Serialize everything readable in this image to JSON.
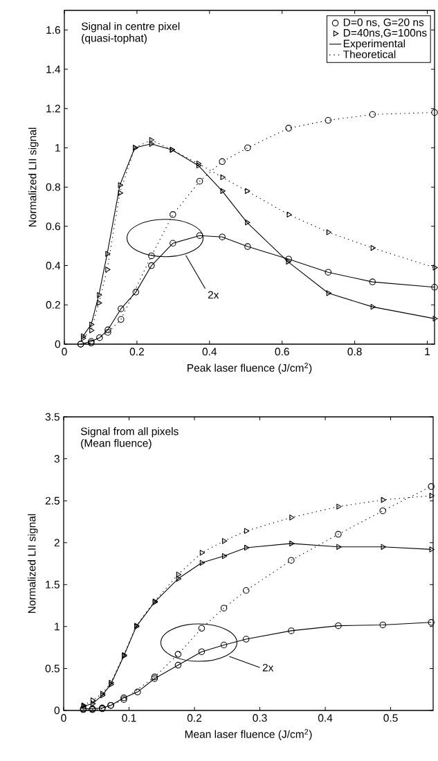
{
  "chart_data": [
    {
      "type": "line",
      "xlabel": "Peak laser fluence (J/cm$^{2}$)",
      "ylabel": "Normalized LII signal",
      "xlim": [
        0,
        1.02
      ],
      "ylim": [
        0,
        1.7
      ],
      "xticks": [
        0,
        0.2,
        0.4,
        0.6,
        0.8,
        1
      ],
      "yticks": [
        0,
        0.2,
        0.4,
        0.6,
        0.8,
        1,
        1.2,
        1.4,
        1.6
      ],
      "legend": "top right",
      "annotations": [
        "Signal in centre pixel",
        "(quasi-tophat)",
        "Experimental",
        "Theoretical",
        "2x"
      ],
      "series": [
        {
          "name": "D=0 ns, G=20 ns",
          "color": "#000000",
          "marker": "circle",
          "line_style": "solid",
          "x": [
            0.045,
            0.074,
            0.097,
            0.12,
            0.156,
            0.197,
            0.24,
            0.299,
            0.373,
            0.435,
            0.505,
            0.618,
            0.727,
            0.849,
            1.02
          ],
          "values": [
            0,
            0.014,
            0.033,
            0.073,
            0.18,
            0.265,
            0.4,
            0.514,
            0.553,
            0.546,
            0.497,
            0.433,
            0.366,
            0.317,
            0.29
          ]
        },
        {
          "name": "D=40ns,G=100ns",
          "color": "#000000",
          "marker": "triangle",
          "line_style": "solid",
          "x": [
            0.051,
            0.074,
            0.095,
            0.118,
            0.153,
            0.194,
            0.239,
            0.296,
            0.369,
            0.435,
            0.503,
            0.616,
            0.727,
            0.849,
            1.02
          ],
          "values": [
            0.04,
            0.1,
            0.25,
            0.46,
            0.81,
            1.0,
            1.02,
            0.99,
            0.91,
            0.78,
            0.62,
            0.42,
            0.26,
            0.19,
            0.13
          ]
        },
        {
          "color": "#000000",
          "marker": "circle",
          "line_style": "dotted",
          "x": [
            0.045,
            0.074,
            0.12,
            0.156,
            0.24,
            0.299,
            0.373,
            0.435,
            0.505,
            0.618,
            0.727,
            0.849,
            1.02
          ],
          "values": [
            0,
            0.006,
            0.06,
            0.126,
            0.45,
            0.66,
            0.83,
            0.93,
            1.0,
            1.1,
            1.14,
            1.17,
            1.18
          ]
        },
        {
          "color": "#000000",
          "marker": "triangle",
          "line_style": "dotted",
          "x": [
            0.051,
            0.074,
            0.095,
            0.118,
            0.153,
            0.194,
            0.239,
            0.296,
            0.369,
            0.435,
            0.503,
            0.618,
            0.727,
            0.849,
            1.02
          ],
          "values": [
            0.03,
            0.07,
            0.21,
            0.38,
            0.77,
            1.0,
            1.04,
            0.99,
            0.92,
            0.85,
            0.78,
            0.66,
            0.57,
            0.49,
            0.39
          ]
        }
      ]
    },
    {
      "type": "line",
      "xlabel": "Mean laser fluence (J/cm$^{2}$)",
      "ylabel": "Normalized LII signal",
      "xlim": [
        0,
        0.565
      ],
      "ylim": [
        0,
        3.5
      ],
      "xticks": [
        0,
        0.1,
        0.2,
        0.3,
        0.4,
        0.5
      ],
      "yticks": [
        0,
        0.5,
        1,
        1.5,
        2,
        2.5,
        3,
        3.5
      ],
      "annotations": [
        "Signal from all pixels",
        "(Mean fluence)",
        "2x"
      ],
      "series": [
        {
          "color": "#000000",
          "marker": "circle",
          "line_style": "solid",
          "x": [
            0.03,
            0.044,
            0.059,
            0.072,
            0.092,
            0.113,
            0.139,
            0.175,
            0.211,
            0.245,
            0.279,
            0.348,
            0.42,
            0.488,
            0.562
          ],
          "values": [
            0.02,
            0.02,
            0.03,
            0.06,
            0.15,
            0.22,
            0.38,
            0.54,
            0.7,
            0.78,
            0.85,
            0.95,
            1.01,
            1.02,
            1.05
          ]
        },
        {
          "color": "#000000",
          "marker": "triangle",
          "line_style": "solid",
          "x": [
            0.03,
            0.044,
            0.059,
            0.072,
            0.092,
            0.111,
            0.139,
            0.175,
            0.211,
            0.245,
            0.279,
            0.348,
            0.42,
            0.488,
            0.562
          ],
          "values": [
            0.05,
            0.08,
            0.18,
            0.31,
            0.65,
            1.0,
            1.29,
            1.57,
            1.76,
            1.84,
            1.94,
            1.99,
            1.95,
            1.95,
            1.92
          ]
        },
        {
          "color": "#000000",
          "marker": "circle",
          "line_style": "dotted",
          "x": [
            0.03,
            0.044,
            0.059,
            0.072,
            0.092,
            0.139,
            0.175,
            0.211,
            0.245,
            0.279,
            0.348,
            0.42,
            0.488,
            0.562
          ],
          "values": [
            0.01,
            0.01,
            0.02,
            0.06,
            0.13,
            0.4,
            0.67,
            0.98,
            1.22,
            1.43,
            1.79,
            2.1,
            2.38,
            2.67
          ]
        },
        {
          "color": "#000000",
          "marker": "triangle",
          "line_style": "dotted",
          "x": [
            0.03,
            0.044,
            0.059,
            0.072,
            0.092,
            0.111,
            0.139,
            0.175,
            0.211,
            0.245,
            0.279,
            0.348,
            0.42,
            0.488,
            0.562
          ],
          "values": [
            0.06,
            0.12,
            0.2,
            0.33,
            0.66,
            1.01,
            1.3,
            1.62,
            1.88,
            2.02,
            2.14,
            2.3,
            2.43,
            2.51,
            2.56
          ]
        }
      ]
    }
  ]
}
